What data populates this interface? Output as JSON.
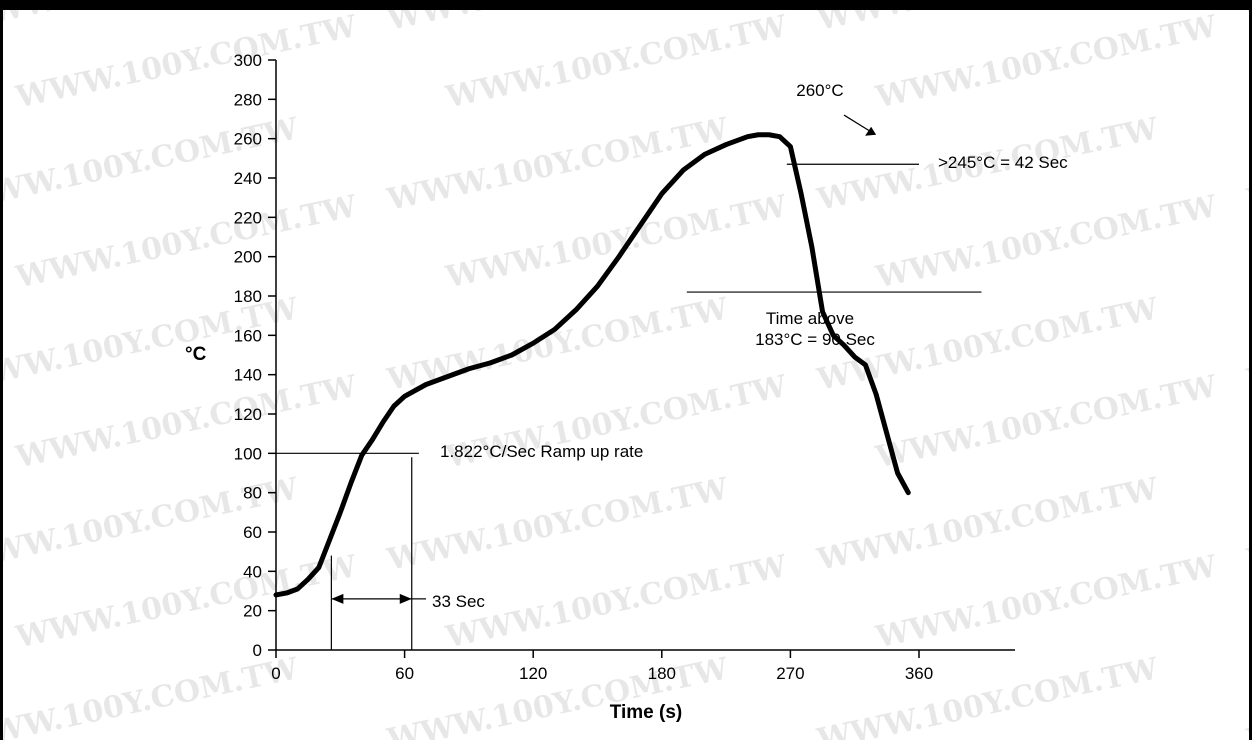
{
  "chart_data": {
    "type": "line",
    "title": "",
    "xlabel": "Time (s)",
    "ylabel": "°C",
    "xlim": [
      0,
      360
    ],
    "ylim": [
      0,
      300
    ],
    "x_ticks": [
      "0",
      "60",
      "120",
      "180",
      "270",
      "360"
    ],
    "y_ticks": [
      "0",
      "20",
      "40",
      "60",
      "80",
      "100",
      "120",
      "140",
      "160",
      "180",
      "200",
      "220",
      "240",
      "260",
      "280",
      "300"
    ],
    "series": [
      {
        "points": [
          [
            0,
            28
          ],
          [
            6,
            29
          ],
          [
            12,
            31
          ],
          [
            18,
            36
          ],
          [
            24,
            42
          ],
          [
            30,
            56
          ],
          [
            36,
            70
          ],
          [
            42,
            85
          ],
          [
            48,
            99
          ],
          [
            54,
            107
          ],
          [
            60,
            116
          ],
          [
            66,
            124
          ],
          [
            72,
            129
          ],
          [
            84,
            135
          ],
          [
            96,
            139
          ],
          [
            108,
            143
          ],
          [
            120,
            146
          ],
          [
            132,
            150
          ],
          [
            144,
            156
          ],
          [
            156,
            163
          ],
          [
            168,
            173
          ],
          [
            180,
            185
          ],
          [
            192,
            200
          ],
          [
            204,
            216
          ],
          [
            216,
            232
          ],
          [
            228,
            244
          ],
          [
            240,
            252
          ],
          [
            252,
            257
          ],
          [
            264,
            261
          ],
          [
            270,
            262
          ],
          [
            276,
            262
          ],
          [
            282,
            261
          ],
          [
            288,
            256
          ],
          [
            294,
            232
          ],
          [
            300,
            205
          ],
          [
            306,
            172
          ],
          [
            312,
            160
          ],
          [
            318,
            155
          ],
          [
            324,
            149
          ],
          [
            330,
            145
          ],
          [
            336,
            130
          ],
          [
            342,
            110
          ],
          [
            348,
            90
          ],
          [
            354,
            80
          ]
        ]
      }
    ],
    "annotations": {
      "peak": "260°C",
      "above245": ">245°C = 42 Sec",
      "above183_line1": "Time above",
      "above183_line2": "183°C = 90 Sec",
      "ramp": "1.822°C/Sec Ramp up rate",
      "ramp_time": "33 Sec"
    },
    "grid": false,
    "legend": "none"
  },
  "watermark": "WWW.100Y.COM.TW"
}
